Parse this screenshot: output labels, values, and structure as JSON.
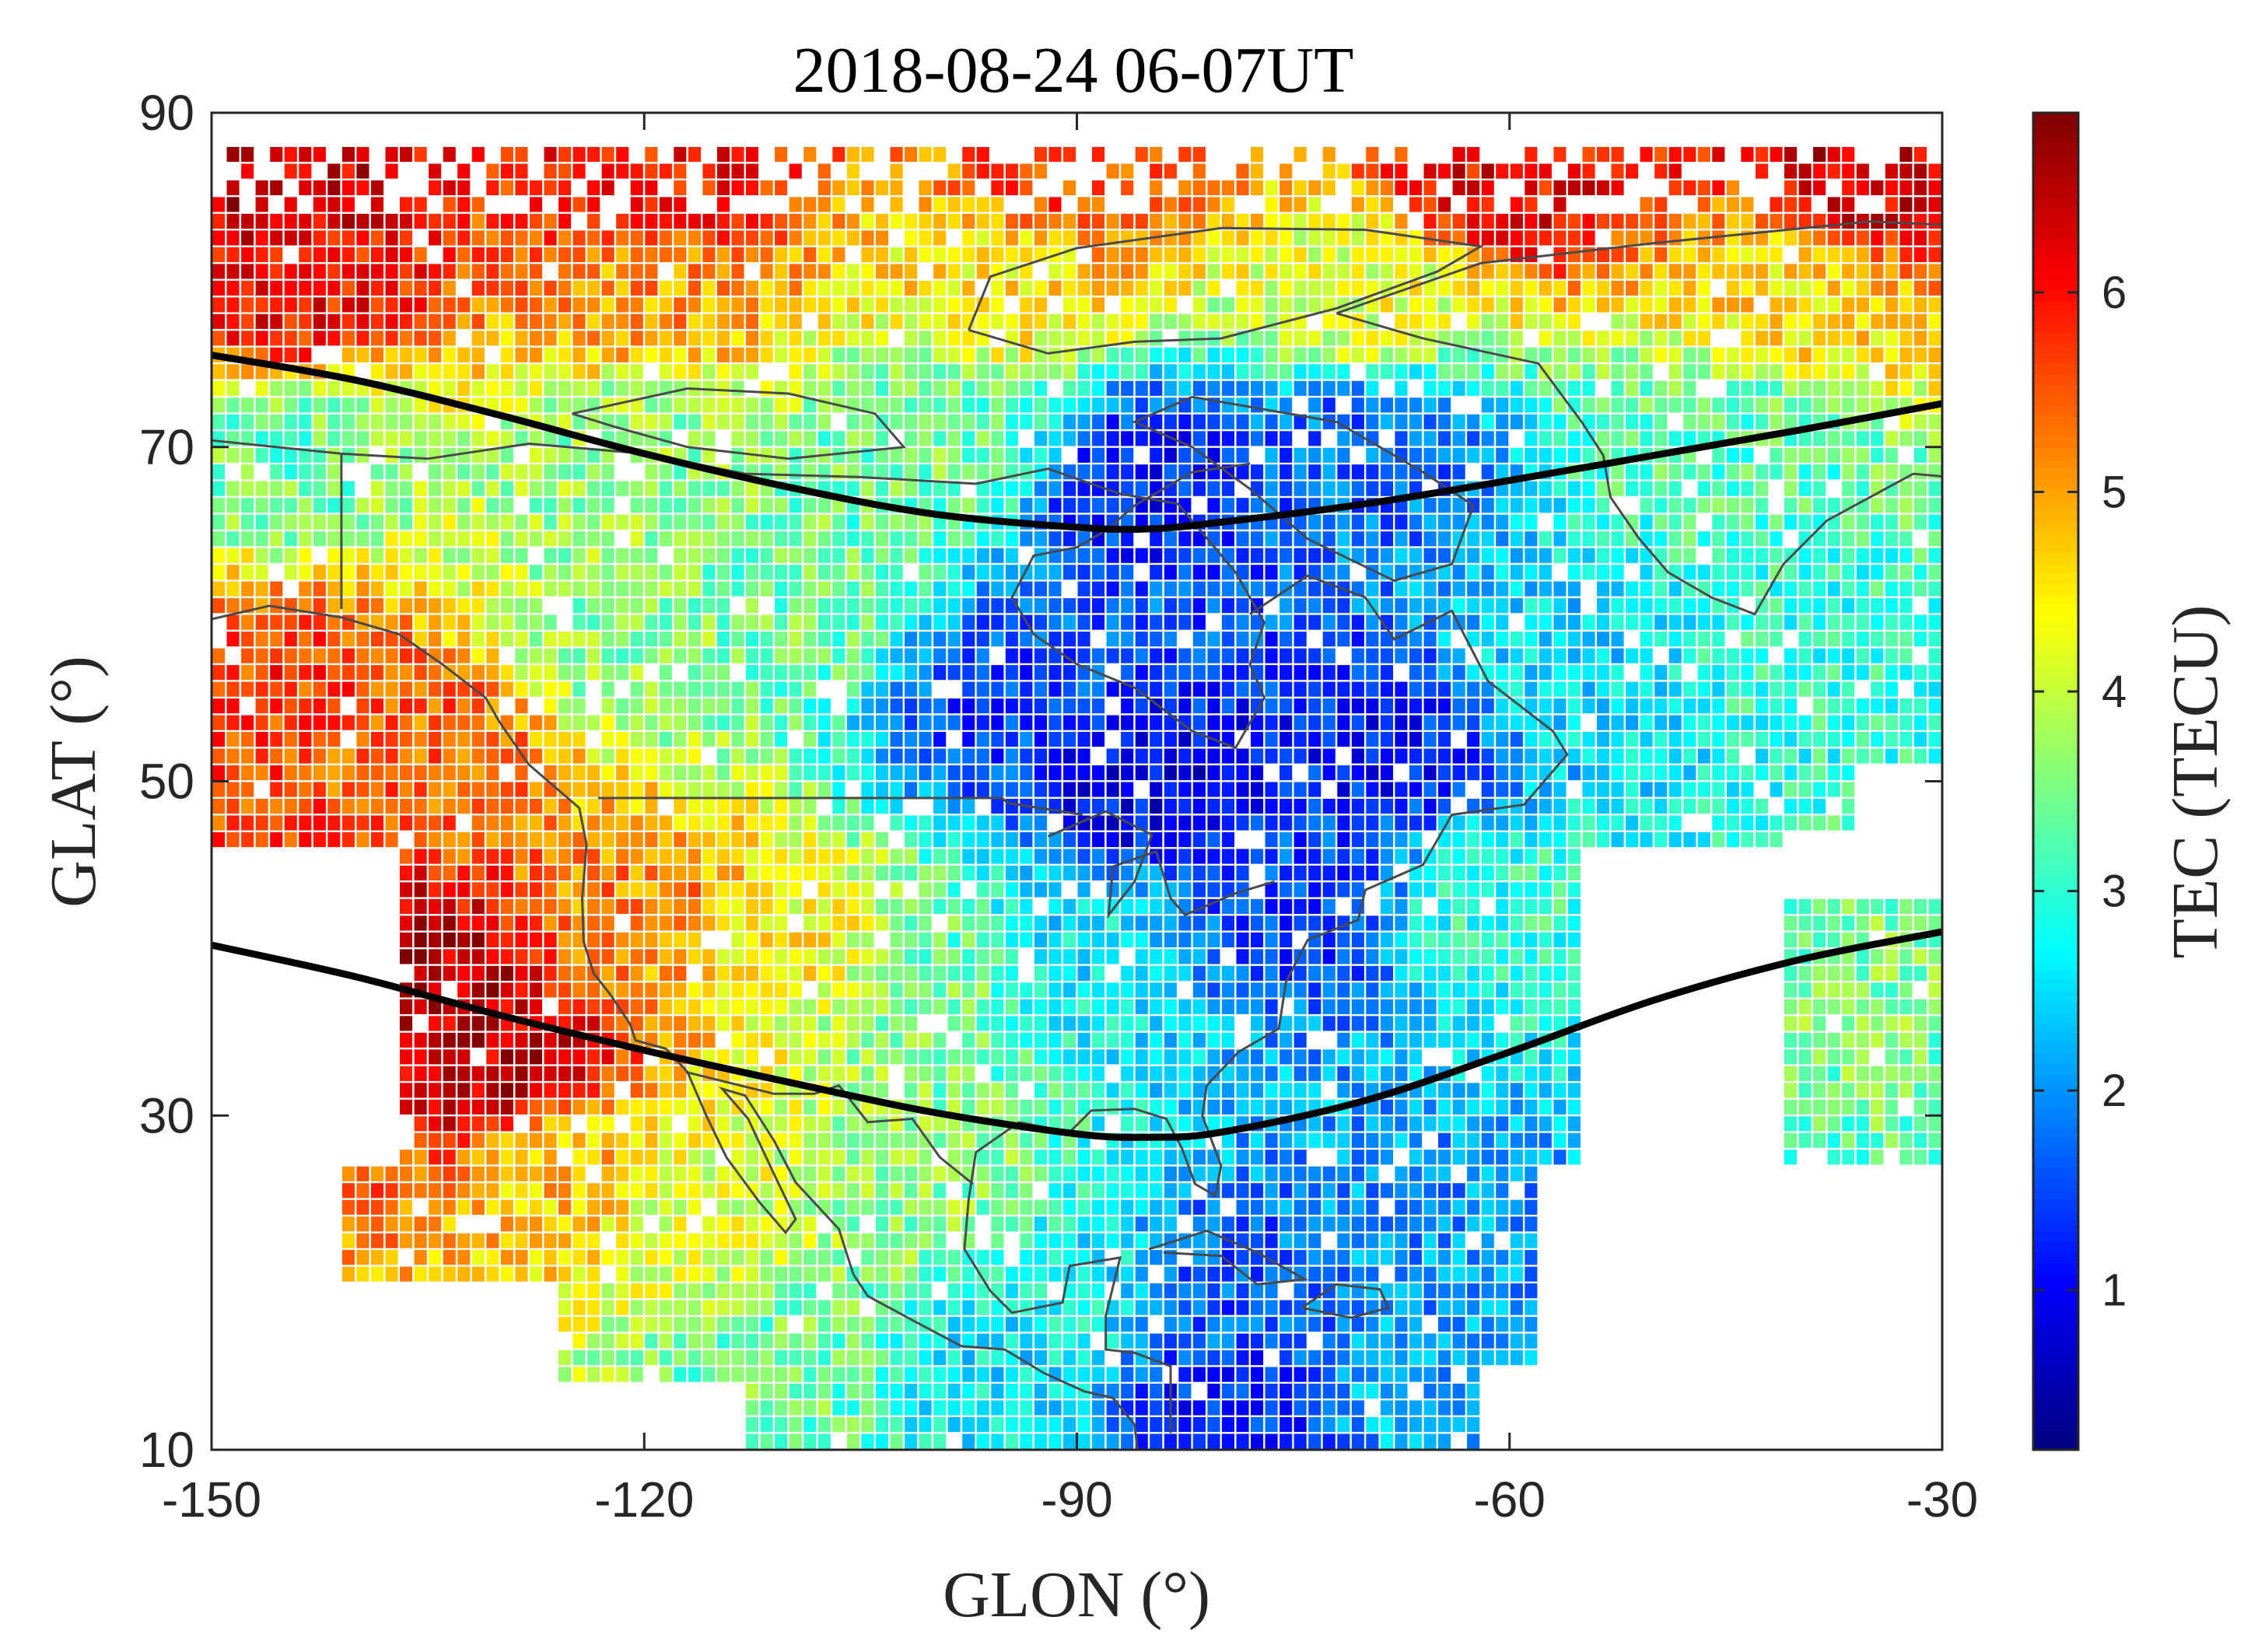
{
  "chart_data": {
    "type": "heatmap",
    "title": "2018-08-24 06-07UT",
    "xlabel": "GLON (°)",
    "ylabel": "GLAT (°)",
    "xlim": [
      -150,
      -30
    ],
    "ylim": [
      10,
      90
    ],
    "x_ticks": [
      -150,
      -120,
      -90,
      -60,
      -30
    ],
    "y_ticks": [
      10,
      30,
      50,
      70,
      90
    ],
    "x_tick_labels": [
      "-150",
      "-120",
      "-90",
      "-60",
      "-30"
    ],
    "y_tick_labels": [
      "10",
      "30",
      "50",
      "70",
      "90"
    ],
    "cell_size_deg": 1,
    "colorbar": {
      "label": "TEC (TECU)",
      "range": [
        0.2,
        6.9
      ],
      "ticks": [
        1,
        2,
        3,
        4,
        5,
        6
      ],
      "tick_labels": [
        "1",
        "2",
        "3",
        "4",
        "5",
        "6"
      ],
      "colormap": "jet"
    },
    "tec_field_anchors": [
      {
        "lon": -147,
        "lat": 86,
        "tec": 6.4
      },
      {
        "lon": -120,
        "lat": 86,
        "tec": 6.0
      },
      {
        "lon": -90,
        "lat": 86,
        "tec": 5.6
      },
      {
        "lon": -60,
        "lat": 86,
        "tec": 6.1
      },
      {
        "lon": -35,
        "lat": 86,
        "tec": 6.3
      },
      {
        "lon": -145,
        "lat": 79,
        "tec": 6.0
      },
      {
        "lon": -120,
        "lat": 79,
        "tec": 5.1
      },
      {
        "lon": -95,
        "lat": 80,
        "tec": 4.5
      },
      {
        "lon": -70,
        "lat": 79,
        "tec": 4.2
      },
      {
        "lon": -40,
        "lat": 79,
        "tec": 4.6
      },
      {
        "lon": -145,
        "lat": 70,
        "tec": 3.4
      },
      {
        "lon": -120,
        "lat": 70,
        "tec": 3.6
      },
      {
        "lon": -100,
        "lat": 70,
        "tec": 3.4
      },
      {
        "lon": -85,
        "lat": 68,
        "tec": 1.2
      },
      {
        "lon": -70,
        "lat": 70,
        "tec": 1.7
      },
      {
        "lon": -45,
        "lat": 70,
        "tec": 3.2
      },
      {
        "lon": -147,
        "lat": 55,
        "tec": 5.7
      },
      {
        "lon": -135,
        "lat": 52,
        "tec": 5.4
      },
      {
        "lon": -120,
        "lat": 58,
        "tec": 3.6
      },
      {
        "lon": -110,
        "lat": 60,
        "tec": 3.4
      },
      {
        "lon": -95,
        "lat": 55,
        "tec": 1.5
      },
      {
        "lon": -85,
        "lat": 50,
        "tec": 1.0
      },
      {
        "lon": -70,
        "lat": 52,
        "tec": 1.2
      },
      {
        "lon": -55,
        "lat": 57,
        "tec": 2.5
      },
      {
        "lon": -40,
        "lat": 58,
        "tec": 3.0
      },
      {
        "lon": -135,
        "lat": 38,
        "tec": 6.5
      },
      {
        "lon": -130,
        "lat": 33,
        "tec": 6.4
      },
      {
        "lon": -120,
        "lat": 42,
        "tec": 5.2
      },
      {
        "lon": -110,
        "lat": 40,
        "tec": 4.4
      },
      {
        "lon": -100,
        "lat": 38,
        "tec": 3.4
      },
      {
        "lon": -90,
        "lat": 40,
        "tec": 2.6
      },
      {
        "lon": -75,
        "lat": 42,
        "tec": 1.5
      },
      {
        "lon": -60,
        "lat": 42,
        "tec": 3.0
      },
      {
        "lon": -35,
        "lat": 38,
        "tec": 3.5
      },
      {
        "lon": -125,
        "lat": 27,
        "tec": 4.8
      },
      {
        "lon": -115,
        "lat": 25,
        "tec": 4.1
      },
      {
        "lon": -100,
        "lat": 25,
        "tec": 3.6
      },
      {
        "lon": -90,
        "lat": 20,
        "tec": 2.7
      },
      {
        "lon": -80,
        "lat": 20,
        "tec": 1.6
      },
      {
        "lon": -65,
        "lat": 22,
        "tec": 2.0
      },
      {
        "lon": -110,
        "lat": 14,
        "tec": 3.4
      },
      {
        "lon": -95,
        "lat": 14,
        "tec": 2.6
      },
      {
        "lon": -80,
        "lat": 12,
        "tec": 1.3
      },
      {
        "lon": -65,
        "lat": 13,
        "tec": 2.2
      }
    ],
    "boundary_curves": [
      {
        "points": [
          [
            -150,
            75.5
          ],
          [
            -140,
            74.0
          ],
          [
            -130,
            71.9
          ],
          [
            -120,
            69.6
          ],
          [
            -110,
            67.6
          ],
          [
            -100,
            66.0
          ],
          [
            -90,
            65.2
          ],
          [
            -85,
            65.1
          ],
          [
            -80,
            65.5
          ],
          [
            -70,
            66.6
          ],
          [
            -60,
            68.0
          ],
          [
            -50,
            69.5
          ],
          [
            -40,
            71.0
          ],
          [
            -30,
            72.6
          ]
        ]
      },
      {
        "points": [
          [
            -150,
            40.2
          ],
          [
            -140,
            38.3
          ],
          [
            -130,
            36.0
          ],
          [
            -120,
            33.9
          ],
          [
            -110,
            32.0
          ],
          [
            -100,
            30.2
          ],
          [
            -90,
            28.9
          ],
          [
            -85,
            28.7
          ],
          [
            -80,
            29.0
          ],
          [
            -70,
            30.9
          ],
          [
            -60,
            33.8
          ],
          [
            -50,
            36.9
          ],
          [
            -40,
            39.3
          ],
          [
            -30,
            41.0
          ]
        ]
      }
    ],
    "coverage_gaps": [
      {
        "lon": [
          -150,
          -141
        ],
        "lat": [
          10,
          27
        ]
      },
      {
        "lon": [
          -150,
          -137
        ],
        "lat": [
          27,
          46
        ]
      },
      {
        "lon": [
          -150,
          -126
        ],
        "lat": [
          10,
          20
        ]
      },
      {
        "lon": [
          -150,
          -113
        ],
        "lat": [
          10,
          14
        ]
      },
      {
        "lon": [
          -120,
          -115
        ],
        "lat": [
          10,
          11
        ]
      },
      {
        "lon": [
          -58,
          -30
        ],
        "lat": [
          10,
          27
        ]
      },
      {
        "lon": [
          -62,
          -55
        ],
        "lat": [
          10,
          15
        ]
      },
      {
        "lon": [
          -55,
          -41
        ],
        "lat": [
          27,
          46
        ]
      },
      {
        "lon": [
          -41,
          -30
        ],
        "lat": [
          43,
          47
        ]
      },
      {
        "lon": [
          -36,
          -30
        ],
        "lat": [
          46,
          51
        ]
      }
    ]
  }
}
